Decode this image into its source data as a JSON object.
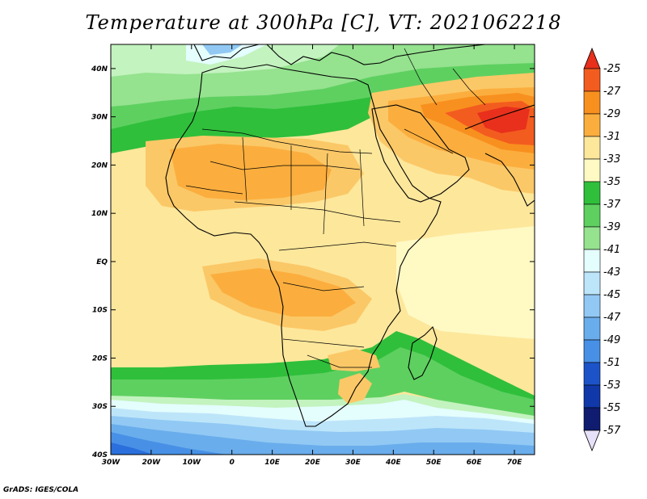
{
  "title": "Temperature at 300hPa [C], VT: 2021062218",
  "footer": "GrADS: IGES/COLA",
  "map": {
    "lon_range": [
      -30,
      75
    ],
    "lat_range": [
      -40,
      45
    ],
    "lat_ticks": [
      {
        "value": 40,
        "label": "40N"
      },
      {
        "value": 30,
        "label": "30N"
      },
      {
        "value": 20,
        "label": "20N"
      },
      {
        "value": 10,
        "label": "10N"
      },
      {
        "value": 0,
        "label": "EQ"
      },
      {
        "value": -10,
        "label": "10S"
      },
      {
        "value": -20,
        "label": "20S"
      },
      {
        "value": -30,
        "label": "30S"
      },
      {
        "value": -40,
        "label": "40S"
      }
    ],
    "lon_ticks": [
      {
        "value": -30,
        "label": "30W"
      },
      {
        "value": -20,
        "label": "20W"
      },
      {
        "value": -10,
        "label": "10W"
      },
      {
        "value": 0,
        "label": "0"
      },
      {
        "value": 10,
        "label": "10E"
      },
      {
        "value": 20,
        "label": "20E"
      },
      {
        "value": 30,
        "label": "30E"
      },
      {
        "value": 40,
        "label": "40E"
      },
      {
        "value": 50,
        "label": "50E"
      },
      {
        "value": 60,
        "label": "60E"
      },
      {
        "value": 70,
        "label": "70E"
      }
    ]
  },
  "colorbar": {
    "labels": [
      "-25",
      "-27",
      "-29",
      "-31",
      "-33",
      "-35",
      "-37",
      "-39",
      "-41",
      "-43",
      "-45",
      "-47",
      "-49",
      "-51",
      "-53",
      "-55",
      "-57"
    ],
    "colors": [
      "#e8301c",
      "#f35c1f",
      "#f8901f",
      "#fbae3e",
      "#fbc867",
      "#fde79b",
      "#fff9c4",
      "#2fbf3b",
      "#5ed060",
      "#95e28f",
      "#c3f3bf",
      "#e4fdfd",
      "#bde5fa",
      "#91c9f4",
      "#6aadec",
      "#4790e6",
      "#2a6fdc",
      "#1c53c8",
      "#1038a8",
      "#101c6f",
      "#e6e0f8"
    ]
  }
}
